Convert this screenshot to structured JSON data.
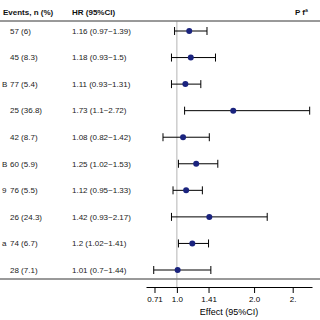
{
  "chart_data": {
    "type": "forest",
    "xlabel": "Effect (95%CI)",
    "annotation": "P fª",
    "categories": [
      null,
      null,
      "B",
      null,
      null,
      "B",
      "9",
      null,
      "a",
      null
    ],
    "values": [
      1.16,
      1.18,
      1.11,
      1.73,
      1.08,
      1.25,
      1.12,
      1.42,
      1.2,
      1.01
    ],
    "ci_lower": [
      0.97,
      0.93,
      0.93,
      1.1,
      0.82,
      1.02,
      0.95,
      0.93,
      1.02,
      0.7
    ],
    "ci_upper": [
      1.39,
      1.5,
      1.31,
      2.72,
      1.42,
      1.53,
      1.33,
      2.17,
      1.41,
      1.44
    ],
    "columns": [
      {
        "header": "Events, n (%)",
        "labels": [
          "57 (6)",
          "45 (8.3)",
          "77 (5.4)",
          "25 (36.8)",
          "42 (8.7)",
          "60 (5.9)",
          "76 (5.5)",
          "26 (24.3)",
          "74 (6.7)",
          "28 (7.1)"
        ]
      },
      {
        "header": "HR (95%CI)",
        "labels": [
          "1.16 (0.97~1.39)",
          "1.18 (0.93~1.5)",
          "1.11 (0.93~1.31)",
          "1.73 (1.1~2.72)",
          "1.08 (0.82~1.42)",
          "1.25 (1.02~1.53)",
          "1.12 (0.95~1.33)",
          "1.42 (0.93~2.17)",
          "1.2 (1.02~1.41)",
          "1.01 (0.7~1.44)"
        ]
      }
    ],
    "reference_line": 1.0,
    "color": "#1a237e",
    "xlim": [
      0.6,
      2.75
    ],
    "xticks": [
      0.71,
      {
        "value": 1.0,
        "label": "1.0"
      },
      1.41,
      {
        "value": 2.0,
        "label": "2.0"
      },
      {
        "value": 2.5,
        "label": "2."
      }
    ]
  }
}
